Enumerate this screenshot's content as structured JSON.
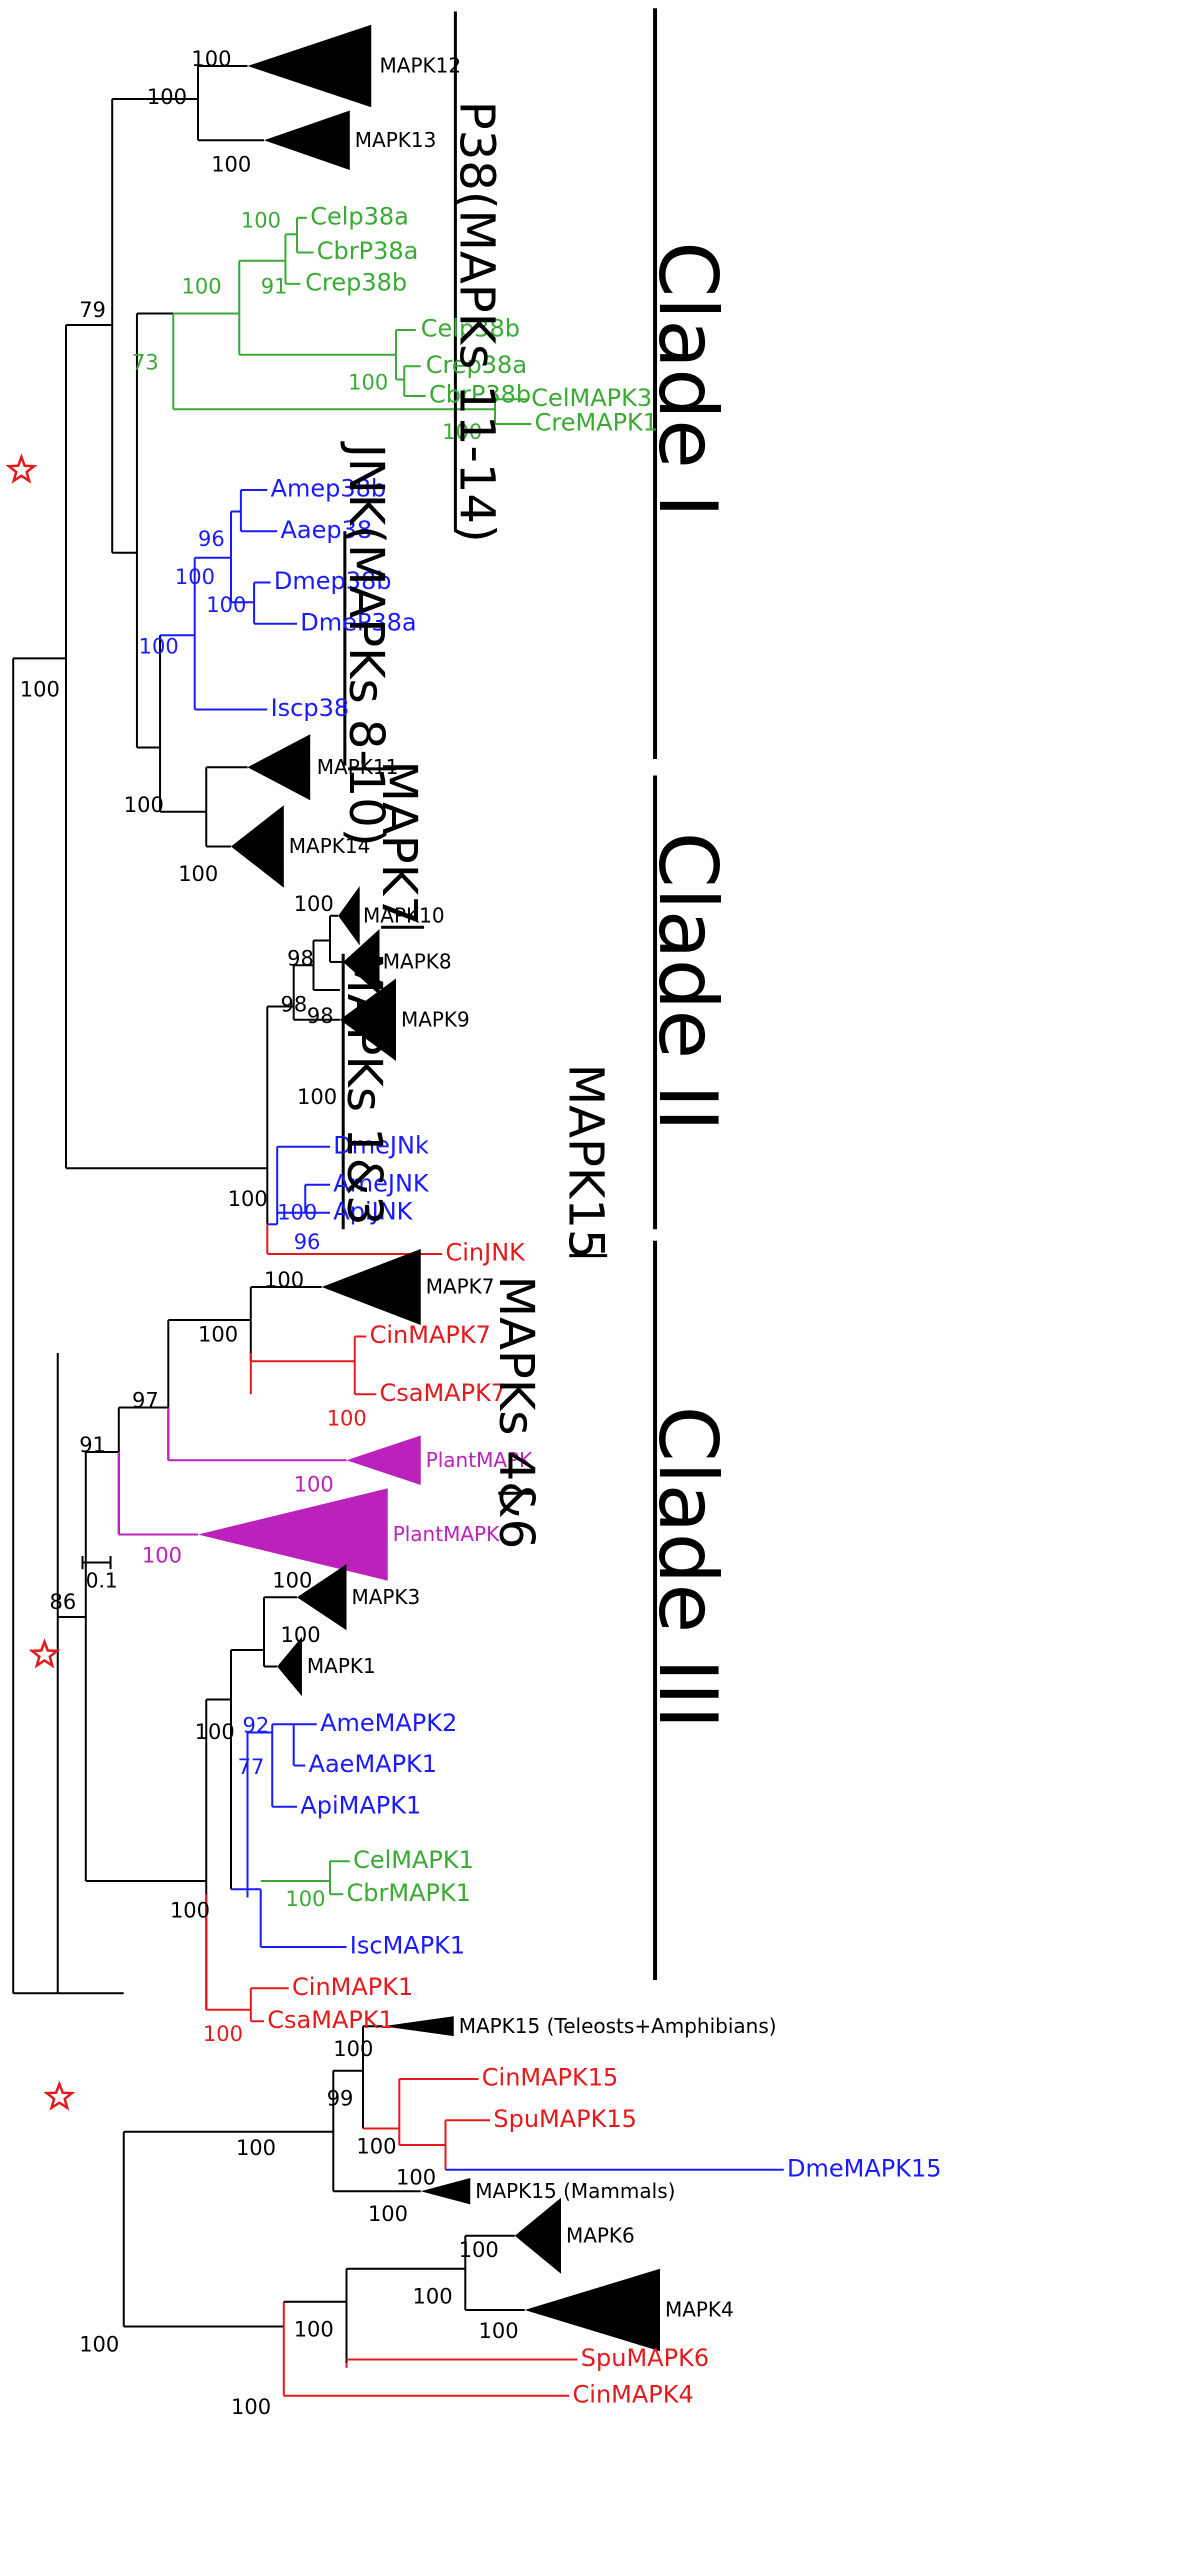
{
  "colors": {
    "black": "#000000",
    "green": "#3aaa35",
    "blue": "#1a1aff",
    "red": "#e31a1c",
    "magenta": "#bb22bb",
    "star": "#e31a1c"
  },
  "clades": {
    "clade1": "Clade I",
    "clade2": "Clade II",
    "clade3": "Clade III"
  },
  "groups": {
    "p38": "P38(MAPKs 11-14)",
    "jnk": "JNK(MAPKs 8-10)",
    "mapk7": "MAPK7",
    "mapk13": "MAPKs 1&3",
    "mapk15": "MAPK15",
    "mapk46": "MAPKs 4&6"
  },
  "scale_bar": {
    "label": "0.1"
  },
  "taxa": {
    "mapk12": "MAPK12",
    "mapk13": "MAPK13",
    "celp38a": "Celp38a",
    "cbrp38a": "CbrP38a",
    "crep38b": "Crep38b",
    "celp38b": "Celp38b",
    "crep38a": "Crep38a",
    "cbrp38b": "CbrP38b",
    "celmapk3": "CelMAPK3",
    "cremapk1": "CreMAPK1",
    "amep38b": "Amep38b",
    "aaep38": "Aaep38",
    "dmep38b": "Dmep38b",
    "dmep38a": "DmeP38a",
    "iscp38": "Iscp38",
    "mapk11": "MAPK11",
    "mapk14": "MAPK14",
    "mapk10": "MAPK10",
    "mapk8": "MAPK8",
    "mapk9": "MAPK9",
    "dmejnk": "DmeJNk",
    "amejnk": "AmeJNK",
    "apijnk": "ApiJNK",
    "cinjnk": "CinJNK",
    "mapk7": "MAPK7",
    "cinmapk7": "CinMAPK7",
    "csamapk7": "CsaMAPK7",
    "plantmapk1": "PlantMAPK",
    "plantmapk2": "PlantMAPK",
    "mapk3": "MAPK3",
    "mapk1": "MAPK1",
    "amemapk2": "AmeMAPK2",
    "aaemapk1": "AaeMAPK1",
    "apimapk1": "ApiMAPK1",
    "celmapk1": "CelMAPK1",
    "cbrmapk1": "CbrMAPK1",
    "iscmapk1": "IscMAPK1",
    "cinmapk1": "CinMAPK1",
    "csamapk1": "CsaMAPK1",
    "mapk15ta": "MAPK15 (Teleosts+Amphibians)",
    "cinmapk15": "CinMAPK15",
    "spumapk15": "SpuMAPK15",
    "dmemapk15": "DmeMAPK15",
    "mapk15m": "MAPK15 (Mammals)",
    "mapk6": "MAPK6",
    "mapk4": "MAPK4",
    "spumapk6": "SpuMAPK6",
    "cinmapk4": "CinMAPK4"
  },
  "bootstrap": {
    "b_mapk12": "100",
    "b_p38root": "100",
    "b_mapk13": "100",
    "b_celp38a": "100",
    "b_91": "91",
    "b_nem38a": "100",
    "b_celp38b": "100",
    "b_73": "73",
    "b_79": "79",
    "b_celmapk3": "100",
    "b_96a": "96",
    "b_ins100": "100",
    "b_ins100b": "100",
    "b_dme": "100",
    "b_mapk11a": "100",
    "b_mapk14": "100",
    "b_root100": "100",
    "b_mapk10": "100",
    "b_98a": "98",
    "b_98b": "98",
    "b_98c": "98",
    "b_jnkverts": "100",
    "b_jnkroot": "100",
    "b_jnkins": "100",
    "b_96b": "96",
    "b_mapk7": "100",
    "b_mapk7root": "100",
    "b_97": "97",
    "b_cinmapk7": "100",
    "b_91b": "91",
    "b_plant1": "100",
    "b_plant2": "100",
    "b_86": "86",
    "b_mapk3": "100",
    "b_mapk1": "100",
    "b_100c": "100",
    "b_92": "92",
    "b_77": "77",
    "b_nemmapk1": "100",
    "b_100d": "100",
    "b_cinmapk1": "100",
    "b_mapk15ta": "100",
    "b_99": "99",
    "b_mapk15root": "100",
    "b_cinmapk15": "100",
    "b_spumapk15": "100",
    "b_mapk15m": "100",
    "b_clade3": "100",
    "b_mapk6": "100",
    "b_mapk46": "100",
    "b_mapk4": "100",
    "b_mapk46b": "100",
    "b_cinmapk4": "100"
  }
}
